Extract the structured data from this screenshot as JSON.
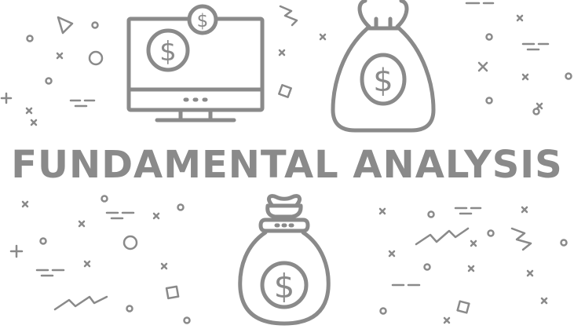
{
  "title": "FUNDAMENTAL ANALYSIS",
  "currency_symbol": "$",
  "colors": {
    "line": "#8a8a8a",
    "text": "#8a8a8a",
    "background": "#ffffff"
  },
  "icons": [
    "computer-monitor-icon",
    "money-bag-icon",
    "coin-icon",
    "dollar-sign-icon"
  ]
}
